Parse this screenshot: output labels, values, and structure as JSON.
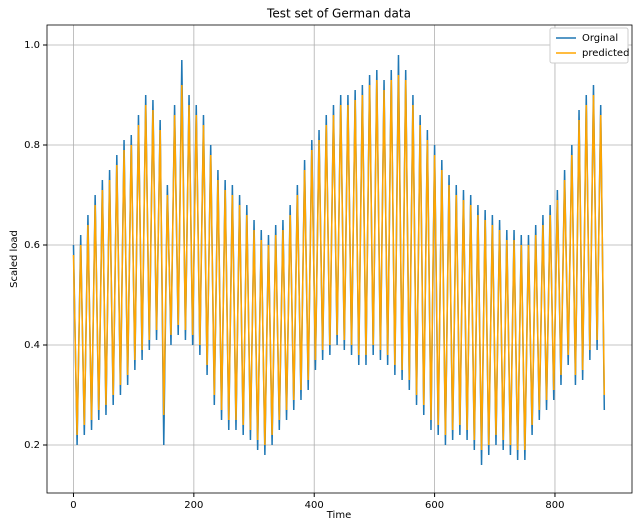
{
  "chart_data": {
    "type": "line",
    "title": "Test set of German data",
    "x_label": "Time",
    "y_label": "Scaled load",
    "x": [
      0,
      6,
      12,
      18,
      24,
      30,
      36,
      42,
      48,
      54,
      60,
      66,
      72,
      78,
      84,
      90,
      96,
      102,
      108,
      114,
      120,
      126,
      132,
      138,
      144,
      150,
      156,
      162,
      168,
      174,
      180,
      186,
      192,
      198,
      204,
      210,
      216,
      222,
      228,
      234,
      240,
      246,
      252,
      258,
      264,
      270,
      276,
      282,
      288,
      294,
      300,
      306,
      312,
      318,
      324,
      330,
      336,
      342,
      348,
      354,
      360,
      366,
      372,
      378,
      384,
      390,
      396,
      402,
      408,
      414,
      420,
      426,
      432,
      438,
      444,
      450,
      456,
      462,
      468,
      474,
      480,
      486,
      492,
      498,
      504,
      510,
      516,
      522,
      528,
      534,
      540,
      546,
      552,
      558,
      564,
      570,
      576,
      582,
      588,
      594,
      600,
      606,
      612,
      618,
      624,
      630,
      636,
      642,
      648,
      654,
      660,
      666,
      672,
      678,
      684,
      690,
      696,
      702,
      708,
      714,
      720,
      726,
      732,
      738,
      744,
      750,
      756,
      762,
      768,
      774,
      780,
      786,
      792,
      798,
      804,
      810,
      816,
      822,
      828,
      834,
      840,
      846,
      852,
      858,
      864,
      870,
      876,
      882
    ],
    "series": [
      {
        "name": "Orginal",
        "color": "#1f77b4",
        "values": [
          0.6,
          0.2,
          0.62,
          0.22,
          0.66,
          0.23,
          0.7,
          0.25,
          0.73,
          0.26,
          0.75,
          0.28,
          0.78,
          0.3,
          0.81,
          0.32,
          0.82,
          0.35,
          0.86,
          0.37,
          0.9,
          0.39,
          0.89,
          0.41,
          0.85,
          0.2,
          0.72,
          0.4,
          0.88,
          0.42,
          0.97,
          0.41,
          0.9,
          0.4,
          0.88,
          0.38,
          0.86,
          0.34,
          0.8,
          0.28,
          0.75,
          0.25,
          0.73,
          0.23,
          0.72,
          0.23,
          0.7,
          0.22,
          0.68,
          0.21,
          0.65,
          0.19,
          0.63,
          0.18,
          0.62,
          0.2,
          0.64,
          0.23,
          0.65,
          0.25,
          0.68,
          0.27,
          0.72,
          0.29,
          0.77,
          0.31,
          0.81,
          0.35,
          0.83,
          0.37,
          0.86,
          0.38,
          0.88,
          0.4,
          0.9,
          0.39,
          0.9,
          0.38,
          0.91,
          0.36,
          0.92,
          0.36,
          0.94,
          0.38,
          0.95,
          0.37,
          0.93,
          0.36,
          0.95,
          0.34,
          0.98,
          0.33,
          0.95,
          0.31,
          0.9,
          0.28,
          0.86,
          0.26,
          0.83,
          0.23,
          0.8,
          0.22,
          0.77,
          0.2,
          0.74,
          0.21,
          0.72,
          0.22,
          0.71,
          0.21,
          0.7,
          0.19,
          0.68,
          0.16,
          0.67,
          0.18,
          0.66,
          0.2,
          0.65,
          0.19,
          0.63,
          0.18,
          0.63,
          0.17,
          0.62,
          0.17,
          0.62,
          0.22,
          0.64,
          0.25,
          0.66,
          0.27,
          0.68,
          0.29,
          0.71,
          0.32,
          0.75,
          0.36,
          0.8,
          0.32,
          0.87,
          0.33,
          0.9,
          0.37,
          0.92,
          0.39,
          0.88,
          0.27
        ]
      },
      {
        "name": "predicted",
        "color": "#ffa500",
        "values": [
          0.58,
          0.22,
          0.6,
          0.24,
          0.64,
          0.25,
          0.68,
          0.27,
          0.71,
          0.28,
          0.73,
          0.3,
          0.76,
          0.32,
          0.79,
          0.34,
          0.8,
          0.37,
          0.84,
          0.39,
          0.88,
          0.41,
          0.87,
          0.43,
          0.83,
          0.26,
          0.7,
          0.42,
          0.86,
          0.44,
          0.92,
          0.43,
          0.88,
          0.42,
          0.86,
          0.4,
          0.84,
          0.36,
          0.78,
          0.3,
          0.73,
          0.27,
          0.71,
          0.25,
          0.7,
          0.25,
          0.68,
          0.24,
          0.66,
          0.23,
          0.63,
          0.21,
          0.61,
          0.2,
          0.6,
          0.22,
          0.62,
          0.25,
          0.63,
          0.27,
          0.66,
          0.29,
          0.7,
          0.31,
          0.75,
          0.33,
          0.79,
          0.37,
          0.81,
          0.39,
          0.84,
          0.4,
          0.86,
          0.42,
          0.88,
          0.41,
          0.88,
          0.4,
          0.89,
          0.38,
          0.9,
          0.38,
          0.92,
          0.4,
          0.93,
          0.39,
          0.91,
          0.38,
          0.93,
          0.36,
          0.94,
          0.35,
          0.93,
          0.33,
          0.88,
          0.3,
          0.84,
          0.28,
          0.81,
          0.25,
          0.78,
          0.24,
          0.75,
          0.22,
          0.72,
          0.23,
          0.7,
          0.24,
          0.69,
          0.23,
          0.68,
          0.21,
          0.66,
          0.19,
          0.65,
          0.2,
          0.64,
          0.22,
          0.63,
          0.21,
          0.61,
          0.2,
          0.61,
          0.19,
          0.6,
          0.19,
          0.6,
          0.24,
          0.62,
          0.27,
          0.64,
          0.29,
          0.66,
          0.31,
          0.69,
          0.34,
          0.73,
          0.38,
          0.78,
          0.34,
          0.85,
          0.35,
          0.88,
          0.39,
          0.9,
          0.41,
          0.86,
          0.3
        ]
      }
    ],
    "xlim": [
      -44,
      928
    ],
    "ylim": [
      0.104,
      1.04
    ],
    "xticks": [
      0,
      200,
      400,
      600,
      800
    ],
    "yticks": [
      0.2,
      0.4,
      0.6,
      0.8,
      {
        "value": 1,
        "label": "1.0"
      }
    ],
    "grid": true,
    "legend": "upper right"
  }
}
